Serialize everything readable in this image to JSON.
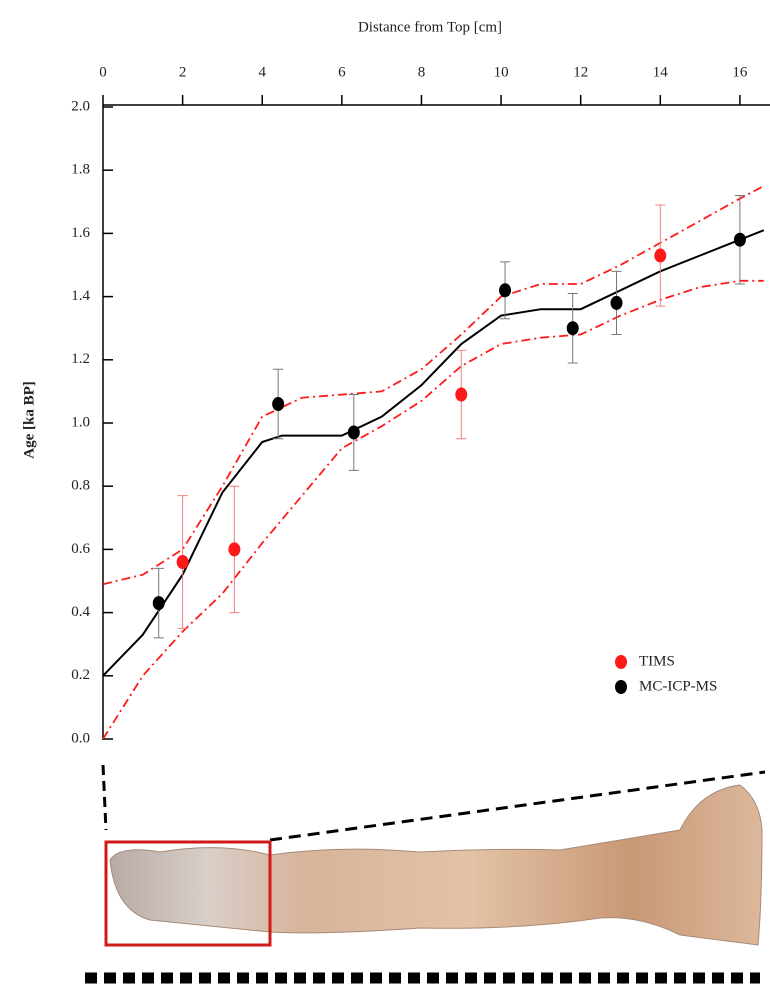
{
  "chart_data": {
    "type": "scatter",
    "x_label": "Distance from Top [cm]",
    "y_label": "Age [ka BP]",
    "xlim": [
      0,
      16.63
    ],
    "ylim": [
      0,
      2.0
    ],
    "xticks": [
      0,
      2,
      4,
      6,
      8,
      10,
      12,
      14,
      16
    ],
    "yticks": [
      {
        "value": 0,
        "label": "0.0"
      },
      0.2,
      0.4,
      0.6,
      0.8,
      {
        "value": 1,
        "label": "1.0"
      },
      1.2,
      1.4,
      1.6,
      1.8,
      {
        "value": 2,
        "label": "2.0"
      }
    ],
    "legend": "lower right",
    "series": [
      {
        "name": "TIMS",
        "color": "#ff1a1a",
        "x": [
          2.0,
          3.3,
          9.0,
          14.0
        ],
        "values": [
          0.56,
          0.6,
          1.09,
          1.53
        ],
        "errors": [
          0.21,
          0.2,
          0.14,
          0.16
        ]
      },
      {
        "name": "MC-ICP-MS",
        "color": "#000000",
        "x": [
          1.4,
          4.4,
          6.3,
          10.1,
          11.8,
          12.9,
          16.0
        ],
        "values": [
          0.43,
          1.06,
          0.97,
          1.42,
          1.3,
          1.38,
          1.58
        ],
        "errors": [
          0.11,
          0.11,
          0.12,
          0.09,
          0.11,
          0.1,
          0.14
        ]
      }
    ],
    "lines": [
      {
        "color": "#000000",
        "style": "solid",
        "x": [
          0,
          1,
          2,
          3,
          4,
          4.5,
          5,
          6,
          7,
          8,
          9,
          10,
          11,
          12,
          13,
          14,
          15,
          16,
          16.6
        ],
        "values": [
          0.2,
          0.33,
          0.52,
          0.78,
          0.94,
          0.96,
          0.96,
          0.96,
          1.02,
          1.12,
          1.25,
          1.34,
          1.36,
          1.36,
          1.42,
          1.48,
          1.53,
          1.58,
          1.61
        ]
      },
      {
        "color": "#ff1a1a",
        "style": "dashdot",
        "x": [
          0,
          1,
          2,
          3,
          4,
          5,
          6,
          7,
          8,
          9,
          10,
          11,
          12,
          13,
          14,
          15,
          16,
          16.6
        ],
        "values": [
          0.49,
          0.52,
          0.6,
          0.8,
          1.02,
          1.08,
          1.09,
          1.1,
          1.17,
          1.28,
          1.4,
          1.44,
          1.44,
          1.5,
          1.57,
          1.64,
          1.71,
          1.75
        ]
      },
      {
        "color": "#ff1a1a",
        "style": "dashdot",
        "x": [
          0,
          1,
          2,
          3,
          4,
          5,
          6,
          7,
          8,
          9,
          10,
          11,
          12,
          13,
          14,
          15,
          16,
          16.6
        ],
        "values": [
          0,
          0.2,
          0.34,
          0.46,
          0.62,
          0.77,
          0.92,
          0.99,
          1.07,
          1.18,
          1.25,
          1.27,
          1.28,
          1.34,
          1.39,
          1.43,
          1.45,
          1.45
        ]
      }
    ]
  }
}
